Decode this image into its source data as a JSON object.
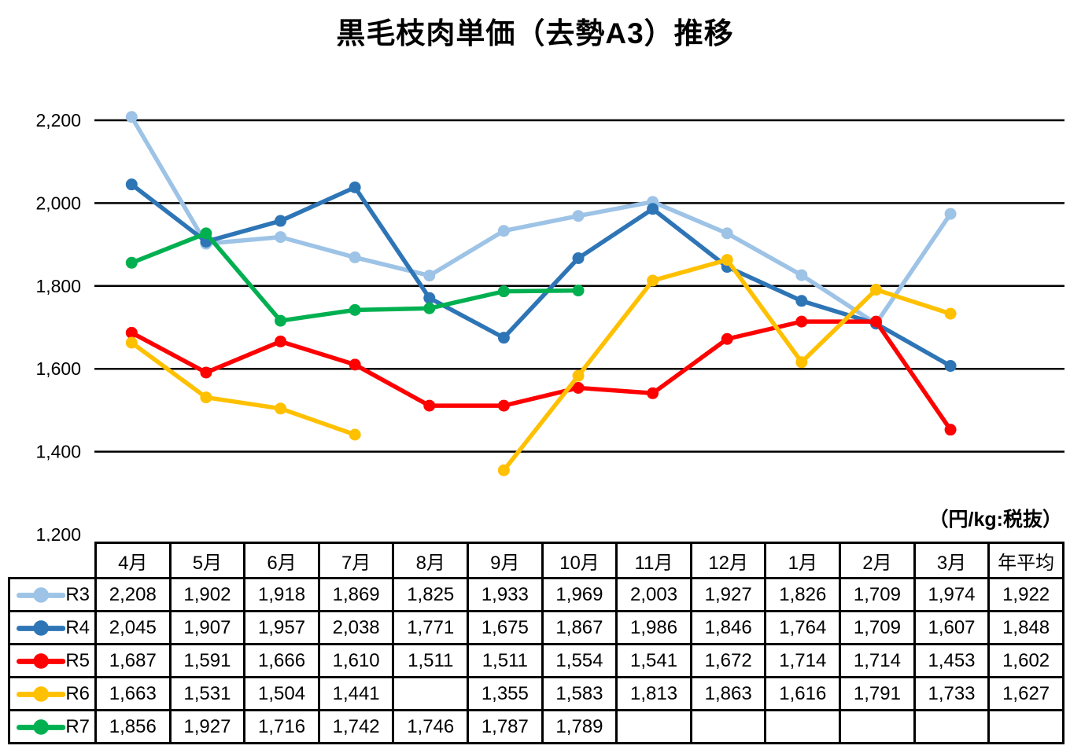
{
  "title": "黒毛枝肉単価（去勢A3）推移",
  "unit_note": "（円/kg:税抜）",
  "chart_data": {
    "type": "line",
    "categories": [
      "4月",
      "5月",
      "6月",
      "7月",
      "8月",
      "9月",
      "10月",
      "11月",
      "12月",
      "1月",
      "2月",
      "3月"
    ],
    "average_column_label": "年平均",
    "series": [
      {
        "name": "R3",
        "color": "#9DC3E6",
        "values": [
          2208,
          1902,
          1918,
          1869,
          1825,
          1933,
          1969,
          2003,
          1927,
          1826,
          1709,
          1974
        ],
        "average": 1922
      },
      {
        "name": "R4",
        "color": "#2E75B6",
        "values": [
          2045,
          1907,
          1957,
          2038,
          1771,
          1675,
          1867,
          1986,
          1846,
          1764,
          1709,
          1607
        ],
        "average": 1848
      },
      {
        "name": "R5",
        "color": "#FF0000",
        "values": [
          1687,
          1591,
          1666,
          1610,
          1511,
          1511,
          1554,
          1541,
          1672,
          1714,
          1714,
          1453
        ],
        "average": 1602
      },
      {
        "name": "R6",
        "color": "#FFC000",
        "values": [
          1663,
          1531,
          1504,
          1441,
          null,
          1355,
          1583,
          1813,
          1863,
          1616,
          1791,
          1733
        ],
        "average": 1627
      },
      {
        "name": "R7",
        "color": "#00B050",
        "values": [
          1856,
          1927,
          1716,
          1742,
          1746,
          1787,
          1789,
          null,
          null,
          null,
          null,
          null
        ],
        "average": null
      }
    ],
    "ylim": [
      1200,
      2200
    ],
    "yticks": [
      2200,
      2000,
      1800,
      1600,
      1400,
      1200
    ],
    "grid": true,
    "gridline_color": "#000000",
    "legend_position": "table-left-column"
  }
}
